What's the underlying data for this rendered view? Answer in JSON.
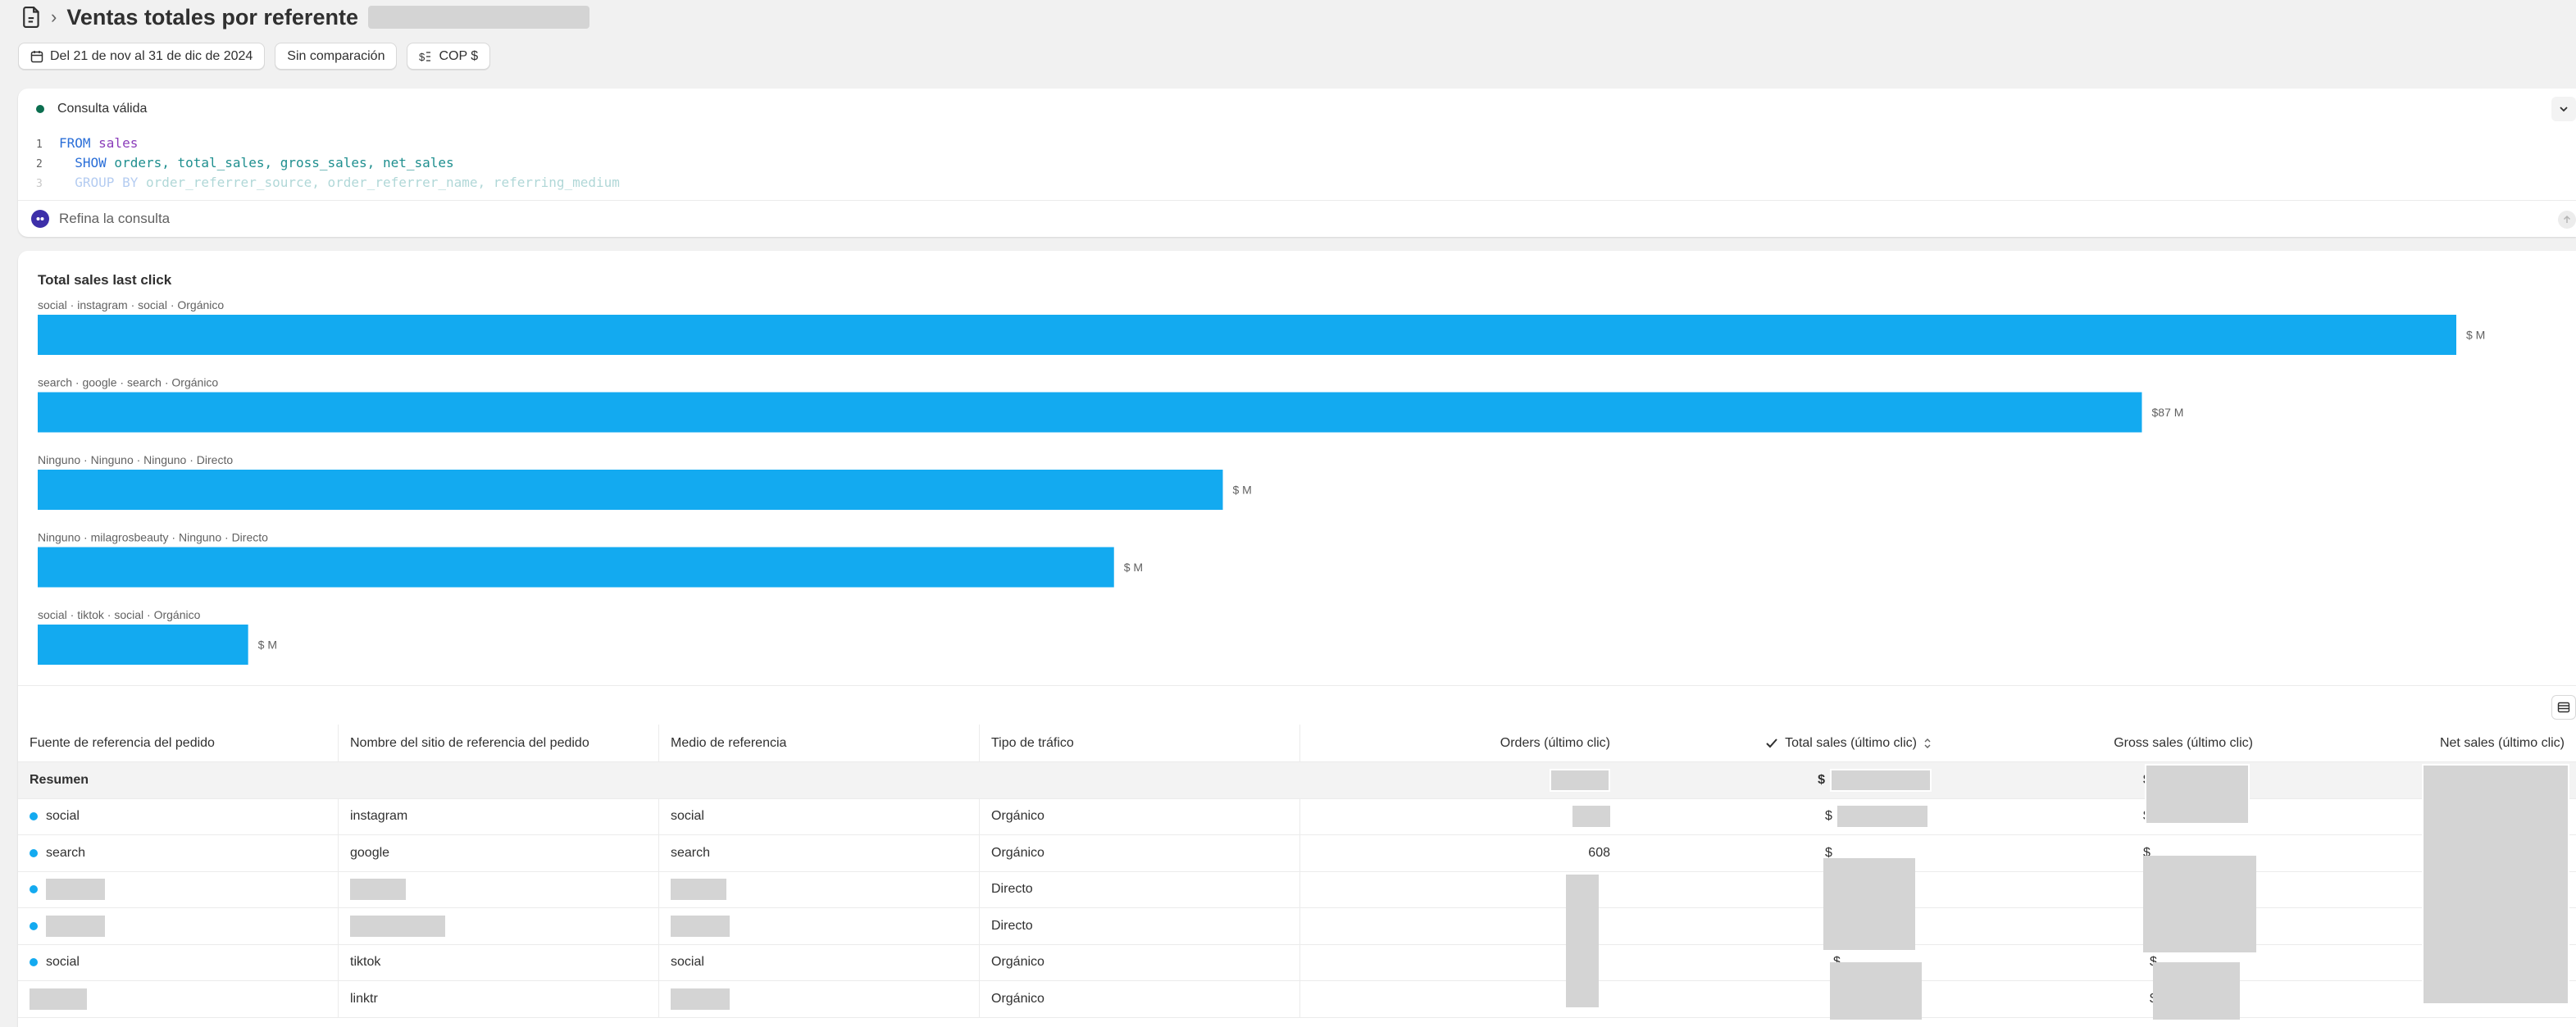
{
  "header": {
    "title": "Ventas totales por referente"
  },
  "filters": {
    "date_range": "Del 21 de nov al 31 de dic de 2024",
    "comparison": "Sin comparación",
    "currency": "COP $"
  },
  "query": {
    "status": "Consulta válida",
    "lines": [
      {
        "num": "1",
        "kw": "FROM",
        "rest": " sales"
      },
      {
        "num": "2",
        "kw": "SHOW",
        "rest": " orders, total_sales, gross_sales, net_sales"
      },
      {
        "num": "3",
        "kw": "GROUP BY",
        "rest": " order_referrer_source, order_referrer_name, referring_medium"
      }
    ],
    "refine_placeholder": "Refina la consulta"
  },
  "chart_data": {
    "type": "bar",
    "orientation": "horizontal",
    "title": "Total sales last click",
    "categories": [
      "social · instagram · social · Orgánico",
      "search · google · search · Orgánico",
      "Ninguno · Ninguno · Ninguno · Directo",
      "Ninguno · milagrosbeauty · Ninguno · Directo",
      "social · tiktok · social · Orgánico"
    ],
    "values": [
      100,
      87,
      49,
      44.5,
      8.7
    ],
    "value_labels": [
      "$ M",
      "$87 M",
      "$ M",
      "$ M",
      "$ M"
    ],
    "unit": "M",
    "color": "#13aaf0"
  },
  "table": {
    "columns": [
      "Fuente de referencia del pedido",
      "Nombre del sitio de referencia del pedido",
      "Medio de referencia",
      "Tipo de tráfico",
      "Orders (último clic)",
      "Total sales (último clic)",
      "Gross sales (último clic)",
      "Net sales (último clic)"
    ],
    "summary_label": "Resumen",
    "currency_symbol": "$",
    "rows": [
      {
        "source": "social",
        "site": "instagram",
        "medium": "social",
        "traffic": "Orgánico",
        "orders": ""
      },
      {
        "source": "search",
        "site": "google",
        "medium": "search",
        "traffic": "Orgánico",
        "orders": "608"
      },
      {
        "source": "",
        "site": "",
        "medium": "",
        "traffic": "Directo",
        "orders": ""
      },
      {
        "source": "",
        "site": "",
        "medium": "",
        "traffic": "Directo",
        "orders": ""
      },
      {
        "source": "social",
        "site": "tiktok",
        "medium": "social",
        "traffic": "Orgánico",
        "orders": ""
      },
      {
        "source": "",
        "site": "linktr",
        "medium": "",
        "traffic": "Orgánico",
        "orders": ""
      }
    ]
  }
}
